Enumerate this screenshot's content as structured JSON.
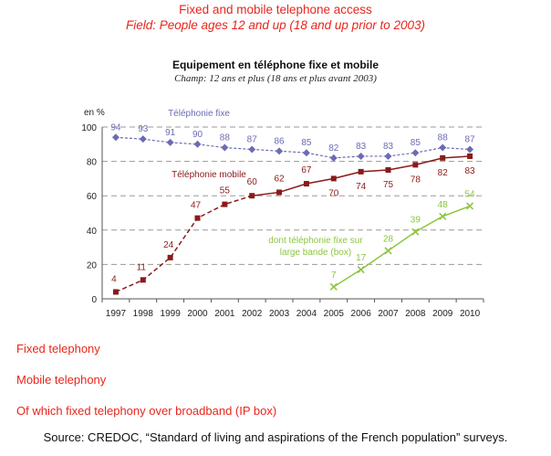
{
  "header": {
    "title": "Fixed and mobile telephone access",
    "field": "Field: People ages 12 and up (18 and up prior to 2003)"
  },
  "chart_data": {
    "type": "line",
    "title": "Equipement en téléphone fixe et mobile",
    "subtitle": "Champ: 12 ans et plus (18 ans et plus avant 2003)",
    "ylabel": "en %",
    "ylim": [
      0,
      100
    ],
    "yticks": [
      0,
      20,
      40,
      60,
      80,
      100
    ],
    "grid": "horizontal dashed",
    "x": [
      "1997",
      "1998",
      "1999",
      "2000",
      "2001",
      "2002",
      "2003",
      "2004",
      "2005",
      "2006",
      "2007",
      "2008",
      "2009",
      "2010"
    ],
    "series": [
      {
        "name": "Téléphonie fixe",
        "color": "#6b6bb5",
        "marker": "diamond",
        "values": [
          94,
          93,
          91,
          90,
          88,
          87,
          86,
          85,
          82,
          83,
          83,
          85,
          88,
          87
        ]
      },
      {
        "name": "Téléphonie mobile",
        "color": "#8b1a1a",
        "marker": "square",
        "values": [
          4,
          11,
          24,
          47,
          55,
          60,
          62,
          67,
          70,
          74,
          75,
          78,
          82,
          83
        ]
      },
      {
        "name": "dont téléphonie fixe sur large bande (box)",
        "color": "#8cc63f",
        "marker": "x",
        "values": [
          null,
          null,
          null,
          null,
          null,
          null,
          null,
          null,
          7,
          17,
          28,
          39,
          48,
          54
        ]
      }
    ]
  },
  "legend_en": [
    "Fixed telephony",
    "Mobile telephony",
    "Of which fixed telephony over broadband (IP box)"
  ],
  "source": "Source: CREDOC, “Standard of living and aspirations of the French population” surveys."
}
